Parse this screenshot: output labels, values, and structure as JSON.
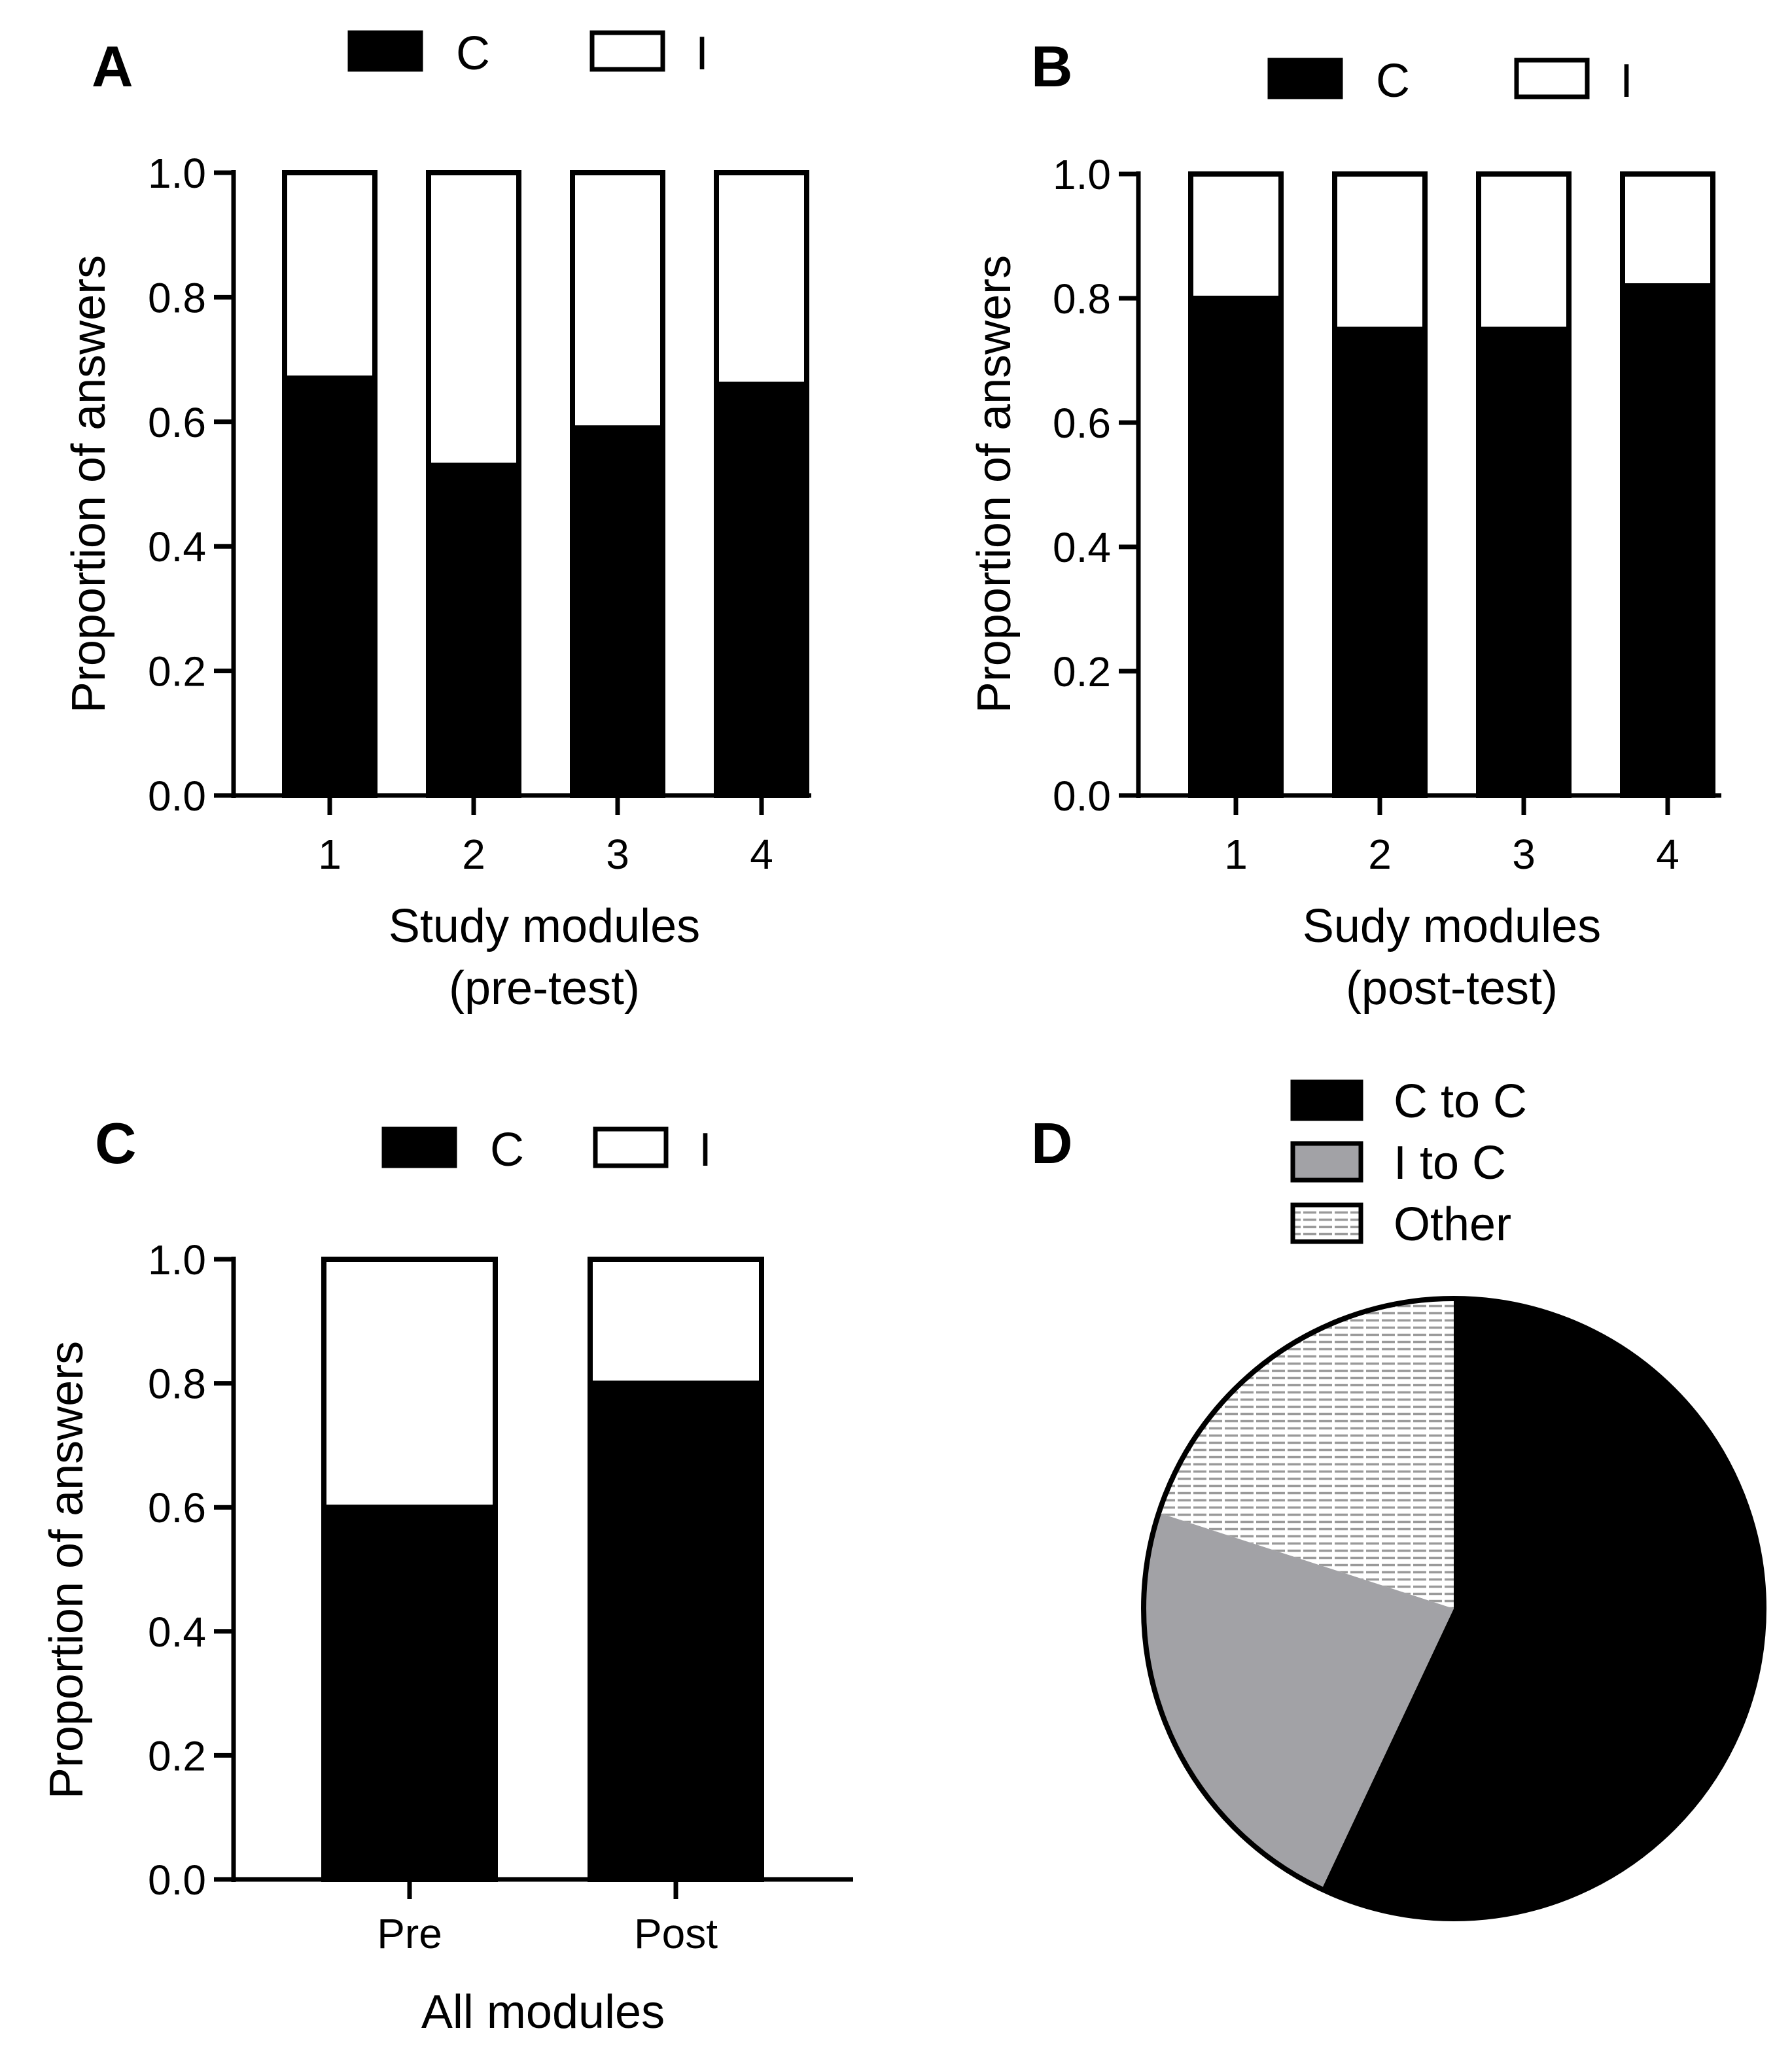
{
  "colors": {
    "correct": "#000000",
    "incorrect": "#ffffff",
    "i_to_c": "#a2a2a6",
    "other_bg": "#ffffff",
    "other_lines": "#9a9a9a"
  },
  "chart_data": [
    {
      "panel": "A",
      "type": "bar",
      "stacked": true,
      "categories": [
        "1",
        "2",
        "3",
        "4"
      ],
      "series": [
        {
          "name": "C",
          "values": [
            0.67,
            0.53,
            0.59,
            0.66
          ]
        },
        {
          "name": "I",
          "values": [
            0.33,
            0.47,
            0.41,
            0.34
          ]
        }
      ],
      "legend": [
        "C",
        "I"
      ],
      "xlabel": [
        "Study modules",
        "(pre-test)"
      ],
      "ylabel": "Proportion of answers",
      "ylim": [
        0,
        1.0
      ],
      "yticks": [
        "0.0",
        "0.2",
        "0.4",
        "0.6",
        "0.8",
        "1.0"
      ]
    },
    {
      "panel": "B",
      "type": "bar",
      "stacked": true,
      "categories": [
        "1",
        "2",
        "3",
        "4"
      ],
      "series": [
        {
          "name": "C",
          "values": [
            0.8,
            0.75,
            0.75,
            0.82
          ]
        },
        {
          "name": "I",
          "values": [
            0.2,
            0.25,
            0.25,
            0.18
          ]
        }
      ],
      "legend": [
        "C",
        "I"
      ],
      "xlabel": [
        "Sudy modules",
        "(post-test)"
      ],
      "ylabel": "Proportion of answers",
      "ylim": [
        0,
        1.0
      ],
      "yticks": [
        "0.0",
        "0.2",
        "0.4",
        "0.6",
        "0.8",
        "1.0"
      ]
    },
    {
      "panel": "C",
      "type": "bar",
      "stacked": true,
      "categories": [
        "Pre",
        "Post"
      ],
      "series": [
        {
          "name": "C",
          "values": [
            0.6,
            0.8
          ]
        },
        {
          "name": "I",
          "values": [
            0.4,
            0.2
          ]
        }
      ],
      "legend": [
        "C",
        "I"
      ],
      "xlabel": [
        "All modules"
      ],
      "ylabel": "Proportion of answers",
      "ylim": [
        0,
        1.0
      ],
      "yticks": [
        "0.0",
        "0.2",
        "0.4",
        "0.6",
        "0.8",
        "1.0"
      ]
    },
    {
      "panel": "D",
      "type": "pie",
      "labels": [
        "C to C",
        "I to C",
        "Other"
      ],
      "values": [
        57,
        23,
        20
      ],
      "legend": [
        "C to C",
        "I to C",
        "Other"
      ]
    }
  ]
}
